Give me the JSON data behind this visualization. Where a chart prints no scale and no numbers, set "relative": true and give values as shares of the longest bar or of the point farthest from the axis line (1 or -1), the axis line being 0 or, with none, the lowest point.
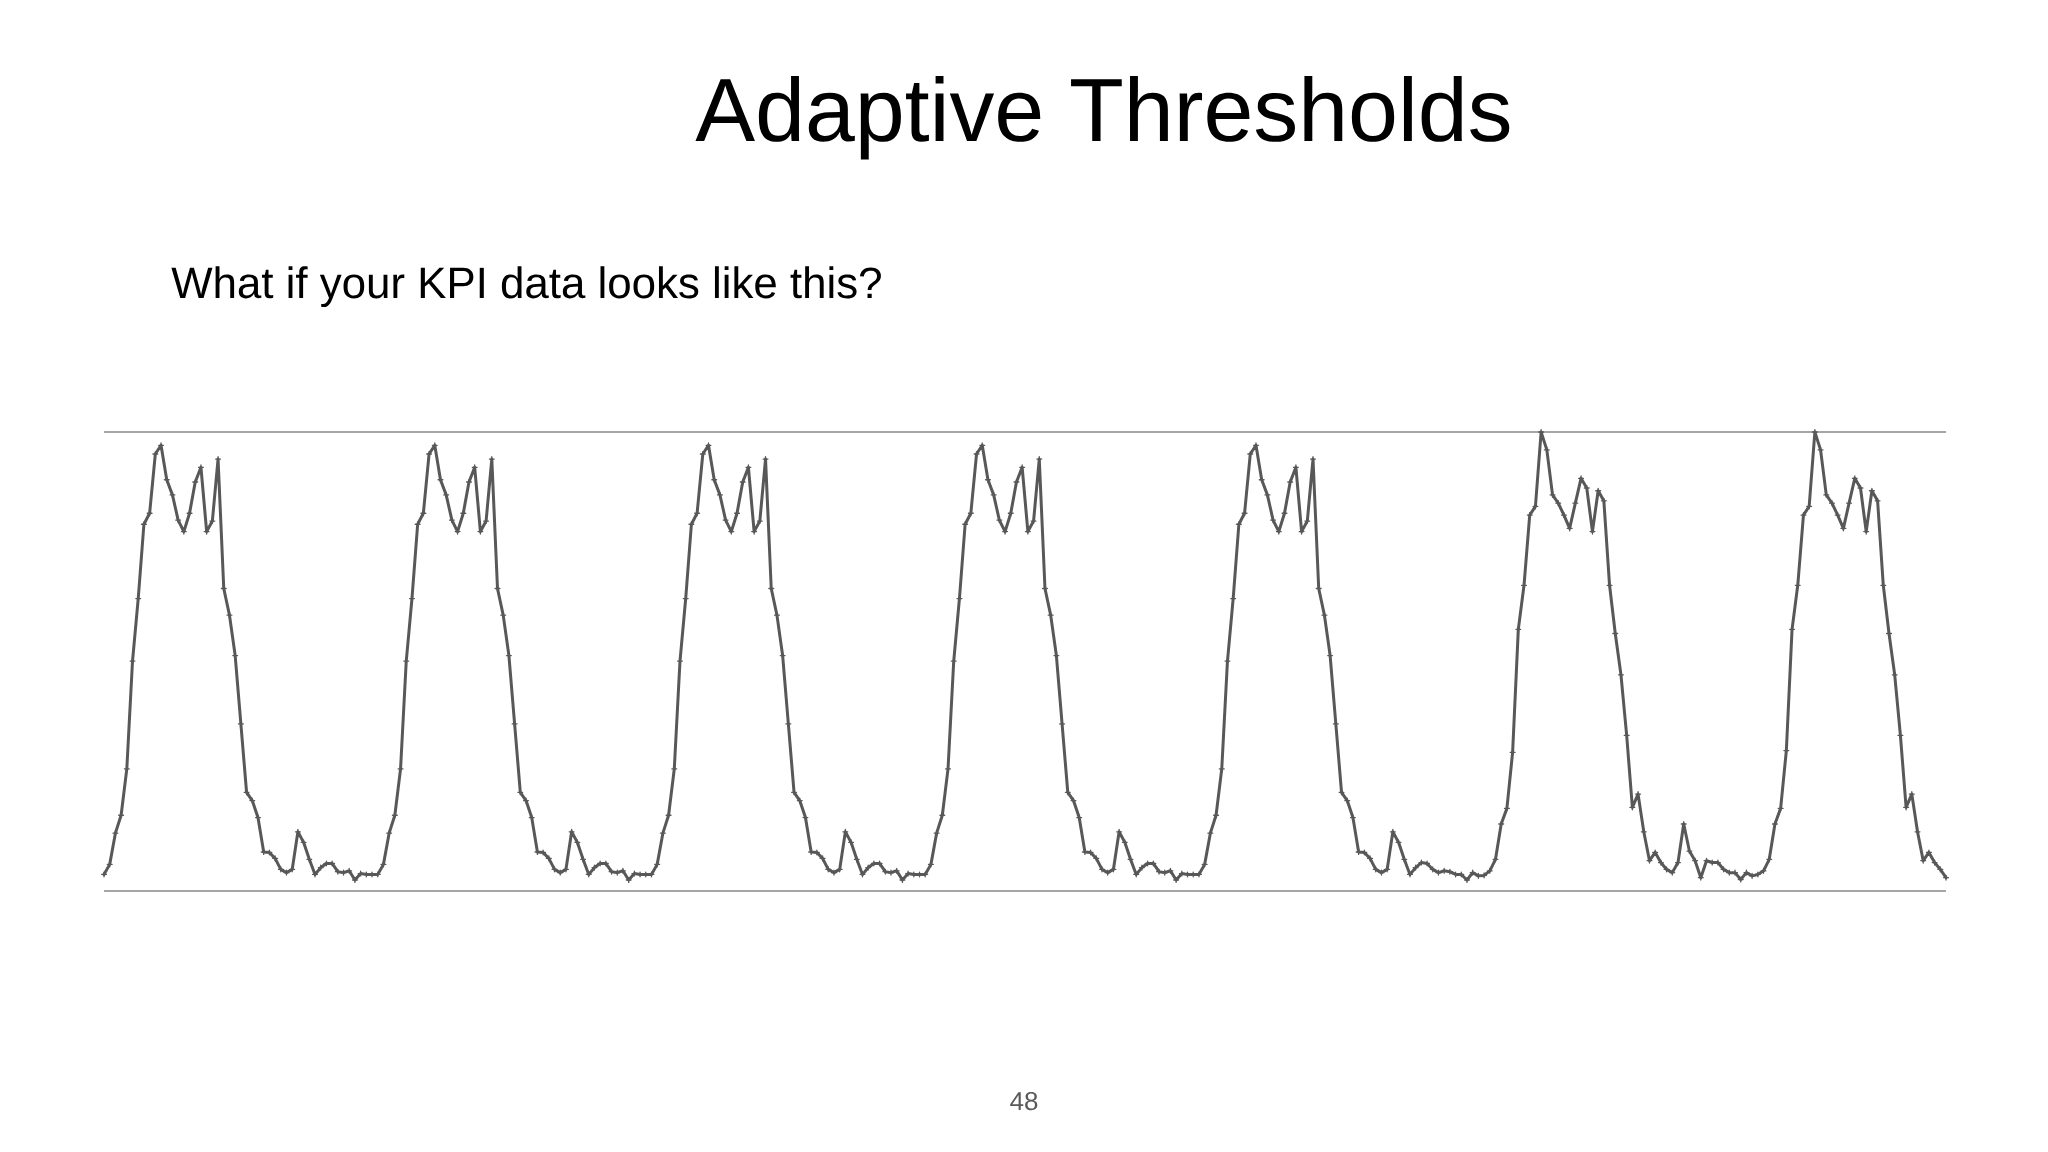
{
  "chart_data": {
    "type": "line",
    "title": "Adaptive Thresholds",
    "subtitle": "What if your KPI data looks like this?",
    "annotations": [
      "48"
    ],
    "categories": [
      null,
      null,
      null,
      null,
      null,
      null,
      null,
      null,
      null,
      null,
      null,
      null,
      null,
      null,
      null,
      null,
      null,
      null,
      null,
      null,
      null,
      null,
      null,
      null,
      null,
      null,
      null,
      null,
      null,
      null,
      null,
      null,
      null,
      null,
      null,
      null,
      null,
      null,
      null,
      null,
      null,
      null,
      null,
      null,
      null,
      null,
      null,
      null,
      null,
      null,
      null,
      null,
      null,
      null,
      null,
      null,
      null,
      null,
      null,
      null,
      null,
      null,
      null,
      null,
      null,
      null,
      null,
      null,
      null,
      null,
      null,
      null,
      null,
      null,
      null,
      null,
      null,
      null,
      null,
      null,
      null,
      null,
      null,
      null,
      null,
      null,
      null,
      null,
      null,
      null,
      null,
      null,
      null,
      null,
      null,
      null,
      null,
      null,
      null,
      null,
      null,
      null,
      null,
      null,
      null,
      null,
      null,
      null,
      null,
      null,
      null,
      null,
      null,
      null,
      null,
      null,
      null,
      null,
      null,
      null,
      null,
      null,
      null,
      null,
      null,
      null,
      null,
      null,
      null,
      null,
      null,
      null,
      null,
      null,
      null,
      null,
      null,
      null,
      null,
      null,
      null,
      null,
      null,
      null,
      null,
      null,
      null,
      null,
      null,
      null,
      null,
      null,
      null,
      null,
      null,
      null,
      null,
      null,
      null,
      null,
      null,
      null,
      null,
      null,
      null,
      null,
      null,
      null,
      null,
      null,
      null,
      null,
      null,
      null,
      null,
      null,
      null,
      null,
      null,
      null,
      null,
      null,
      null,
      null,
      null,
      null,
      null,
      null,
      null,
      null,
      null,
      null,
      null,
      null,
      null,
      null,
      null,
      null,
      null,
      null,
      null,
      null,
      null,
      null,
      null,
      null,
      null,
      null,
      null,
      null,
      null,
      null,
      null,
      null,
      null,
      null,
      null,
      null,
      null,
      null,
      null,
      null,
      null,
      null,
      null,
      null,
      null,
      null,
      null,
      null,
      null,
      null,
      null,
      null,
      null,
      null,
      null,
      null,
      null,
      null,
      null,
      null,
      null,
      null,
      null,
      null,
      null,
      null,
      null,
      null,
      null,
      null,
      null,
      null,
      null,
      null,
      null,
      null,
      null,
      null,
      null,
      null,
      null,
      null,
      null,
      null,
      null,
      null,
      null,
      null,
      null,
      null,
      null,
      null,
      null,
      null,
      null,
      null,
      null,
      null,
      null,
      null,
      null,
      null,
      null,
      null,
      null,
      null,
      null,
      null,
      null,
      null,
      null,
      null,
      null,
      null,
      null,
      null,
      null,
      null,
      null,
      null,
      null,
      null,
      null,
      null,
      null,
      null,
      null,
      null,
      null,
      null,
      null,
      null,
      null,
      null,
      null,
      null,
      null,
      null,
      null,
      null,
      null,
      null
    ],
    "values": [
      0.036,
      0.058,
      0.126,
      0.165,
      0.266,
      0.501,
      0.637,
      0.799,
      0.823,
      0.952,
      0.971,
      0.896,
      0.863,
      0.808,
      0.783,
      0.823,
      0.891,
      0.923,
      0.783,
      0.806,
      0.941,
      0.659,
      0.601,
      0.513,
      0.364,
      0.215,
      0.197,
      0.16,
      0.085,
      0.084,
      0.071,
      0.047,
      0.04,
      0.047,
      0.129,
      0.106,
      0.069,
      0.036,
      0.051,
      0.06,
      0.06,
      0.042,
      0.04,
      0.044,
      0.024,
      0.038,
      0.036,
      0.036,
      0.036,
      0.058,
      0.126,
      0.165,
      0.266,
      0.501,
      0.637,
      0.799,
      0.823,
      0.952,
      0.971,
      0.896,
      0.863,
      0.808,
      0.783,
      0.823,
      0.891,
      0.923,
      0.783,
      0.806,
      0.941,
      0.659,
      0.601,
      0.513,
      0.364,
      0.215,
      0.197,
      0.16,
      0.085,
      0.084,
      0.071,
      0.047,
      0.04,
      0.047,
      0.129,
      0.106,
      0.069,
      0.036,
      0.051,
      0.06,
      0.06,
      0.042,
      0.04,
      0.044,
      0.024,
      0.038,
      0.036,
      0.036,
      0.036,
      0.058,
      0.126,
      0.165,
      0.266,
      0.501,
      0.637,
      0.799,
      0.823,
      0.952,
      0.971,
      0.896,
      0.863,
      0.808,
      0.783,
      0.823,
      0.891,
      0.923,
      0.783,
      0.806,
      0.941,
      0.659,
      0.601,
      0.513,
      0.364,
      0.215,
      0.197,
      0.16,
      0.085,
      0.084,
      0.071,
      0.047,
      0.04,
      0.047,
      0.129,
      0.106,
      0.069,
      0.036,
      0.051,
      0.06,
      0.06,
      0.042,
      0.04,
      0.044,
      0.024,
      0.038,
      0.036,
      0.036,
      0.036,
      0.058,
      0.126,
      0.165,
      0.266,
      0.501,
      0.637,
      0.799,
      0.823,
      0.952,
      0.971,
      0.896,
      0.863,
      0.808,
      0.783,
      0.823,
      0.891,
      0.923,
      0.783,
      0.806,
      0.941,
      0.659,
      0.601,
      0.513,
      0.364,
      0.215,
      0.197,
      0.16,
      0.085,
      0.084,
      0.071,
      0.047,
      0.04,
      0.047,
      0.129,
      0.106,
      0.069,
      0.036,
      0.051,
      0.06,
      0.06,
      0.042,
      0.04,
      0.044,
      0.024,
      0.038,
      0.036,
      0.036,
      0.036,
      0.058,
      0.126,
      0.165,
      0.266,
      0.501,
      0.637,
      0.799,
      0.823,
      0.952,
      0.971,
      0.896,
      0.863,
      0.808,
      0.783,
      0.823,
      0.891,
      0.923,
      0.783,
      0.806,
      0.941,
      0.659,
      0.601,
      0.513,
      0.364,
      0.215,
      0.197,
      0.16,
      0.085,
      0.084,
      0.071,
      0.047,
      0.04,
      0.047,
      0.129,
      0.106,
      0.069,
      0.036,
      0.051,
      0.062,
      0.06,
      0.047,
      0.04,
      0.044,
      0.042,
      0.036,
      0.036,
      0.024,
      0.04,
      0.033,
      0.034,
      0.044,
      0.069,
      0.146,
      0.18,
      0.302,
      0.57,
      0.666,
      0.819,
      0.838,
      1.0,
      0.961,
      0.863,
      0.845,
      0.819,
      0.79,
      0.845,
      0.899,
      0.878,
      0.783,
      0.872,
      0.85,
      0.666,
      0.561,
      0.471,
      0.339,
      0.182,
      0.211,
      0.129,
      0.066,
      0.084,
      0.062,
      0.047,
      0.04,
      0.062,
      0.146,
      0.087,
      0.066,
      0.029,
      0.066,
      0.062,
      0.062,
      0.047,
      0.04,
      0.04,
      0.025,
      0.04,
      0.033,
      0.036,
      0.044,
      0.069,
      0.146,
      0.18,
      0.306,
      0.57,
      0.666,
      0.819,
      0.838,
      1.0,
      0.961,
      0.863,
      0.845,
      0.819,
      0.79,
      0.845,
      0.899,
      0.878,
      0.783,
      0.872,
      0.85,
      0.666,
      0.561,
      0.471,
      0.339,
      0.182,
      0.211,
      0.129,
      0.066,
      0.084,
      0.062,
      0.047,
      0.029
    ],
    "color": "#585858",
    "relative": true,
    "marker": "cross"
  }
}
